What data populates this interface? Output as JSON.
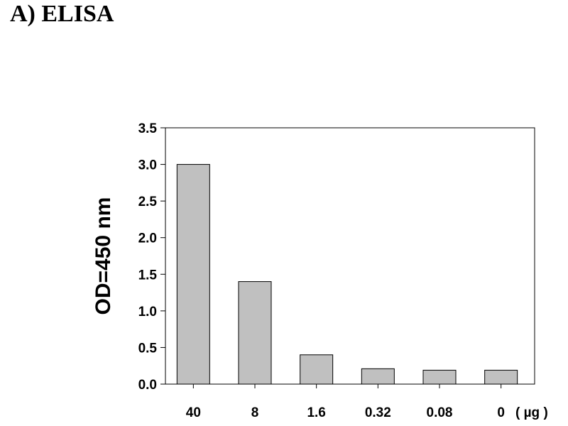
{
  "panel_title": "A) ELISA",
  "chart_data": {
    "type": "bar",
    "categories": [
      "40",
      "8",
      "1.6",
      "0.32",
      "0.08",
      "0"
    ],
    "values": [
      3.0,
      1.4,
      0.4,
      0.21,
      0.19,
      0.19
    ],
    "xlabel": "",
    "x_unit": "( µg )",
    "ylabel": "OD=450 nm",
    "ylim": [
      0,
      3.5
    ],
    "yticks": [
      "0.0",
      "0.5",
      "1.0",
      "1.5",
      "2.0",
      "2.5",
      "3.0",
      "3.5"
    ],
    "grid": false,
    "bar_color": "#c0c0c0"
  }
}
